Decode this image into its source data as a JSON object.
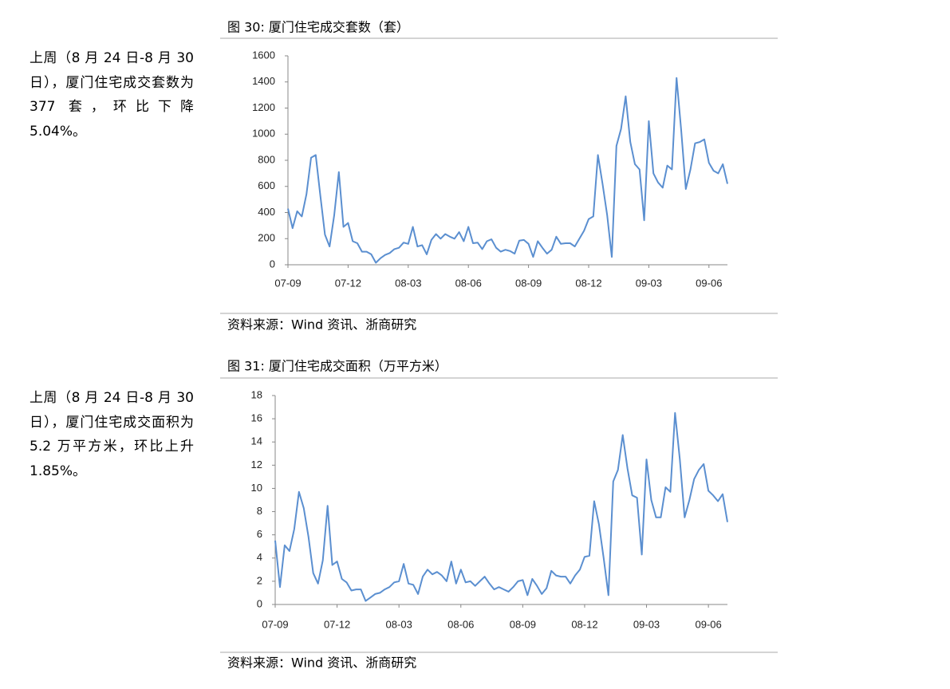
{
  "sidebar": [
    "上周（8 月 24 日-8 月 30 日），厦门住宅成交套数为 377 套，环比下降 5.04%。",
    "上周（8 月 24 日-8 月 30 日），厦门住宅成交面积为 5.2 万平方米，环比上升 1.85%。"
  ],
  "chart_data": [
    {
      "type": "line",
      "title": "图 30:  厦门住宅成交套数（套）",
      "source": "资料来源：Wind 资讯、浙商研究",
      "color": "#5b8fd0",
      "categories": [
        "07-09",
        null,
        null,
        null,
        null,
        null,
        null,
        null,
        null,
        null,
        null,
        null,
        null,
        "07-12",
        null,
        null,
        null,
        null,
        null,
        null,
        null,
        null,
        null,
        null,
        null,
        null,
        "08-03",
        null,
        null,
        null,
        null,
        null,
        null,
        null,
        null,
        null,
        null,
        null,
        null,
        "08-06",
        null,
        null,
        null,
        null,
        null,
        null,
        null,
        null,
        null,
        null,
        null,
        null,
        "08-09",
        null,
        null,
        null,
        null,
        null,
        null,
        null,
        null,
        null,
        null,
        null,
        null,
        "08-12",
        null,
        null,
        null,
        null,
        null,
        null,
        null,
        null,
        null,
        null,
        null,
        null,
        "09-03",
        null,
        null,
        null,
        null,
        null,
        null,
        null,
        null,
        null,
        null,
        null,
        null,
        "09-06",
        null,
        null,
        null,
        null
      ],
      "values": [
        430,
        280,
        410,
        370,
        540,
        820,
        840,
        530,
        230,
        140,
        380,
        710,
        290,
        320,
        180,
        165,
        100,
        100,
        80,
        15,
        50,
        75,
        90,
        120,
        130,
        170,
        160,
        290,
        140,
        150,
        80,
        190,
        235,
        200,
        235,
        215,
        200,
        250,
        180,
        290,
        165,
        170,
        120,
        180,
        195,
        130,
        100,
        115,
        105,
        85,
        185,
        190,
        160,
        60,
        180,
        130,
        85,
        115,
        215,
        160,
        165,
        165,
        140,
        200,
        260,
        350,
        370,
        840,
        620,
        380,
        60,
        910,
        1040,
        1290,
        940,
        770,
        730,
        340,
        1100,
        700,
        630,
        590,
        760,
        730,
        1430,
        1030,
        580,
        730,
        930,
        940,
        960,
        780,
        720,
        700,
        770,
        620
      ],
      "ylim": [
        0,
        1600
      ],
      "yticks": [
        0,
        200,
        400,
        600,
        800,
        1000,
        1200,
        1400,
        1600
      ]
    },
    {
      "type": "line",
      "title": "图 31:  厦门住宅成交面积（万平方米）",
      "source": "资料来源：Wind 资讯、浙商研究",
      "color": "#5b8fd0",
      "categories": [
        "07-09",
        null,
        null,
        null,
        null,
        null,
        null,
        null,
        null,
        null,
        null,
        null,
        null,
        "07-12",
        null,
        null,
        null,
        null,
        null,
        null,
        null,
        null,
        null,
        null,
        null,
        null,
        "08-03",
        null,
        null,
        null,
        null,
        null,
        null,
        null,
        null,
        null,
        null,
        null,
        null,
        "08-06",
        null,
        null,
        null,
        null,
        null,
        null,
        null,
        null,
        null,
        null,
        null,
        null,
        "08-09",
        null,
        null,
        null,
        null,
        null,
        null,
        null,
        null,
        null,
        null,
        null,
        null,
        "08-12",
        null,
        null,
        null,
        null,
        null,
        null,
        null,
        null,
        null,
        null,
        null,
        null,
        "09-03",
        null,
        null,
        null,
        null,
        null,
        null,
        null,
        null,
        null,
        null,
        null,
        null,
        "09-06",
        null,
        null,
        null,
        null
      ],
      "values": [
        5.5,
        1.5,
        5.1,
        4.6,
        6.5,
        9.7,
        8.3,
        5.8,
        2.7,
        1.8,
        3.8,
        8.5,
        3.4,
        3.7,
        2.2,
        1.9,
        1.2,
        1.3,
        1.3,
        0.3,
        0.6,
        0.9,
        1.0,
        1.3,
        1.5,
        1.9,
        2.0,
        3.5,
        1.8,
        1.7,
        0.9,
        2.4,
        3.0,
        2.6,
        2.8,
        2.5,
        2.0,
        3.7,
        1.8,
        3.0,
        1.9,
        2.0,
        1.6,
        2.0,
        2.4,
        1.8,
        1.3,
        1.5,
        1.3,
        1.1,
        1.5,
        2.0,
        2.1,
        0.8,
        2.2,
        1.6,
        0.9,
        1.4,
        2.9,
        2.5,
        2.4,
        2.4,
        1.8,
        2.5,
        3.0,
        4.1,
        4.2,
        8.9,
        6.9,
        4.0,
        0.8,
        10.6,
        11.6,
        14.6,
        11.7,
        9.4,
        9.2,
        4.3,
        12.5,
        9.0,
        7.5,
        7.5,
        10.1,
        9.7,
        16.5,
        12.5,
        7.5,
        9.0,
        10.8,
        11.6,
        12.1,
        9.8,
        9.4,
        8.9,
        9.5,
        7.1
      ],
      "ylim": [
        0,
        18
      ],
      "yticks": [
        0,
        2,
        4,
        6,
        8,
        10,
        12,
        14,
        16,
        18
      ]
    }
  ]
}
